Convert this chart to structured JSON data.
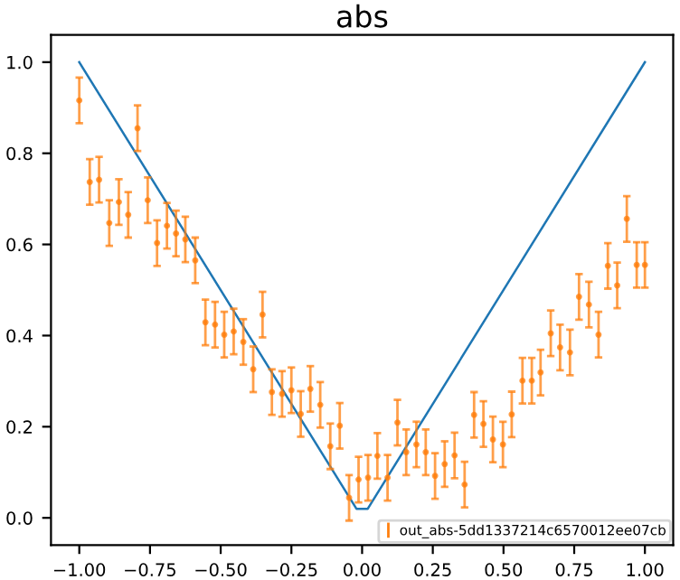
{
  "chart_data": {
    "type": "line",
    "title": "abs",
    "xlim": [
      -1.1,
      1.1
    ],
    "ylim": [
      -0.06,
      1.06
    ],
    "xticks": [
      {
        "value": -1,
        "label": "−1.00"
      },
      {
        "value": -0.75,
        "label": "−0.75"
      },
      {
        "value": -0.5,
        "label": "−0.50"
      },
      {
        "value": -0.25,
        "label": "−0.25"
      },
      {
        "value": 0,
        "label": "0.00"
      },
      {
        "value": 0.25,
        "label": "0.25"
      },
      {
        "value": 0.5,
        "label": "0.50"
      },
      {
        "value": 0.75,
        "label": "0.75"
      },
      {
        "value": 1,
        "label": "1.00"
      }
    ],
    "yticks": [
      {
        "value": 0,
        "label": "0.0"
      },
      {
        "value": 0.2,
        "label": "0.2"
      },
      {
        "value": 0.4,
        "label": "0.4"
      },
      {
        "value": 0.6,
        "label": "0.6"
      },
      {
        "value": 0.8,
        "label": "0.8"
      },
      {
        "value": 1,
        "label": "1.0"
      }
    ],
    "grid": false,
    "legend": "bottom right",
    "series": [
      {
        "marker": "none",
        "color": "#1f77b4",
        "x": [
          -1,
          -0.02,
          0.02,
          1
        ],
        "values": [
          1,
          0.02,
          0.02,
          1
        ]
      },
      {
        "type": "scatter",
        "marker": "circle",
        "name": "out_abs-5dd1337214c6570012ee07cb",
        "color": "#ff7f0e",
        "x": [
          -1.0,
          -0.963,
          -0.93,
          -0.894,
          -0.86,
          -0.827,
          -0.794,
          -0.758,
          -0.725,
          -0.69,
          -0.658,
          -0.625,
          -0.59,
          -0.554,
          -0.52,
          -0.4875,
          -0.454,
          -0.42,
          -0.385,
          -0.352,
          -0.319,
          -0.283,
          -0.25,
          -0.217,
          -0.183,
          -0.148,
          -0.1125,
          -0.079,
          -0.046,
          -0.0125,
          0.021,
          0.054,
          0.09,
          0.125,
          0.156,
          0.192,
          0.225,
          0.258,
          0.292,
          0.327,
          0.3625,
          0.396,
          0.429,
          0.4625,
          0.498,
          0.529,
          0.567,
          0.6,
          0.631,
          0.667,
          0.7,
          0.735,
          0.767,
          0.802,
          0.836,
          0.869,
          0.902,
          0.936,
          0.971,
          1.0
        ],
        "values": [
          0.916,
          0.737,
          0.742,
          0.647,
          0.693,
          0.665,
          0.855,
          0.697,
          0.603,
          0.641,
          0.624,
          0.611,
          0.565,
          0.429,
          0.424,
          0.402,
          0.409,
          0.386,
          0.326,
          0.446,
          0.276,
          0.272,
          0.28,
          0.228,
          0.283,
          0.248,
          0.157,
          0.202,
          0.044,
          0.084,
          0.088,
          0.136,
          0.088,
          0.209,
          0.144,
          0.161,
          0.144,
          0.092,
          0.118,
          0.137,
          0.073,
          0.226,
          0.206,
          0.172,
          0.161,
          0.227,
          0.301,
          0.301,
          0.319,
          0.405,
          0.374,
          0.363,
          0.485,
          0.468,
          0.402,
          0.553,
          0.51,
          0.656,
          0.555,
          0.555
        ],
        "errors": [
          0.05,
          0.05,
          0.05,
          0.05,
          0.05,
          0.05,
          0.05,
          0.05,
          0.05,
          0.05,
          0.05,
          0.05,
          0.05,
          0.05,
          0.05,
          0.05,
          0.05,
          0.05,
          0.05,
          0.05,
          0.05,
          0.05,
          0.05,
          0.05,
          0.05,
          0.05,
          0.05,
          0.05,
          0.05,
          0.05,
          0.05,
          0.05,
          0.05,
          0.05,
          0.05,
          0.05,
          0.05,
          0.05,
          0.05,
          0.05,
          0.05,
          0.05,
          0.05,
          0.05,
          0.05,
          0.05,
          0.05,
          0.05,
          0.05,
          0.05,
          0.05,
          0.05,
          0.05,
          0.05,
          0.05,
          0.05,
          0.05,
          0.05,
          0.05,
          0.05
        ]
      }
    ]
  }
}
